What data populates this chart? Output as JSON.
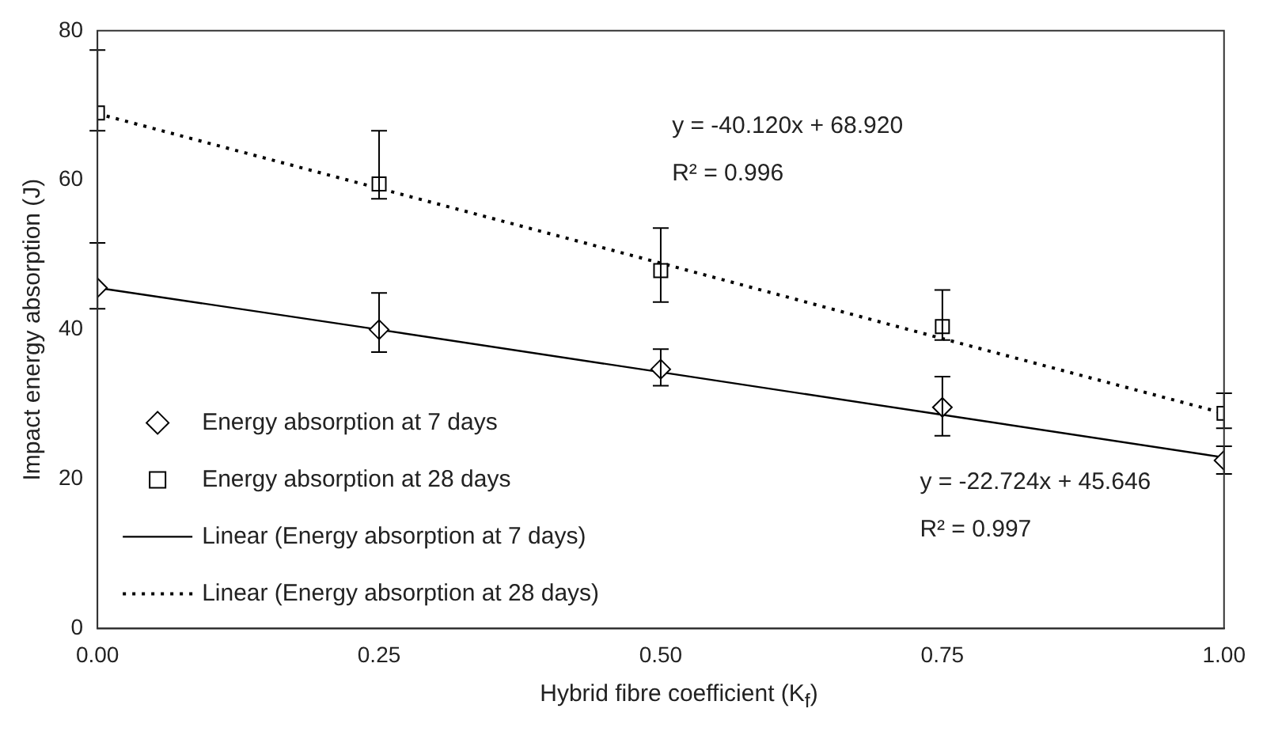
{
  "chart_data": {
    "type": "scatter",
    "xlabel": "Hybrid fibre coefficient (K$_{f}$)",
    "ylabel": "Impact energy absorption (J)",
    "x": [
      0,
      0.25,
      0.5,
      0.75,
      1
    ],
    "series": [
      {
        "name": "Energy absorption at 7 days",
        "type": "scatter",
        "color": "#000000",
        "marker": "diamond",
        "values": [
          45.6,
          40.0,
          34.7,
          29.6,
          22.5
        ],
        "errors": [
          [
            42.8,
            51.6
          ],
          [
            37.0,
            44.9
          ],
          [
            32.5,
            37.4
          ],
          [
            25.8,
            33.7
          ],
          [
            20.7,
            24.4
          ]
        ]
      },
      {
        "name": "Energy absorption at 28 days",
        "type": "scatter",
        "color": "#000000",
        "marker": "square",
        "values": [
          69.0,
          59.5,
          47.9,
          40.4,
          28.8
        ],
        "errors": [
          [
            66.6,
            77.4
          ],
          [
            57.5,
            66.6
          ],
          [
            43.7,
            53.6
          ],
          [
            38.6,
            45.3
          ],
          [
            26.8,
            31.5
          ]
        ]
      },
      {
        "name": "Linear (Energy absorption at 7 days)",
        "type": "line",
        "color": "#000000",
        "line_style": "solid",
        "marker": "none",
        "values": [
          45.6,
          40.0,
          34.3,
          28.6,
          22.9
        ]
      },
      {
        "name": "Linear (Energy absorption at 28 days)",
        "type": "line",
        "color": "#000000",
        "line_style": "dotted",
        "marker": "none",
        "values": [
          68.9,
          58.9,
          48.9,
          38.8,
          28.8
        ]
      }
    ],
    "xlim": [
      0,
      1
    ],
    "xticks": [
      {
        "value": 0,
        "label": "0.00"
      },
      {
        "value": 0.25,
        "label": "0.25"
      },
      {
        "value": 0.5,
        "label": "0.50"
      },
      {
        "value": 0.75,
        "label": "0.75"
      },
      {
        "value": 1,
        "label": "1.00"
      }
    ],
    "ylim": [
      0,
      80
    ],
    "yticks": [
      0,
      20,
      40,
      60,
      80
    ],
    "grid": false,
    "legend": "bottom left",
    "annotations": [
      "y = -40.120x + 68.920",
      "R² = 0.996",
      "y = -22.724x + 45.646",
      "R² = 0.997"
    ]
  }
}
